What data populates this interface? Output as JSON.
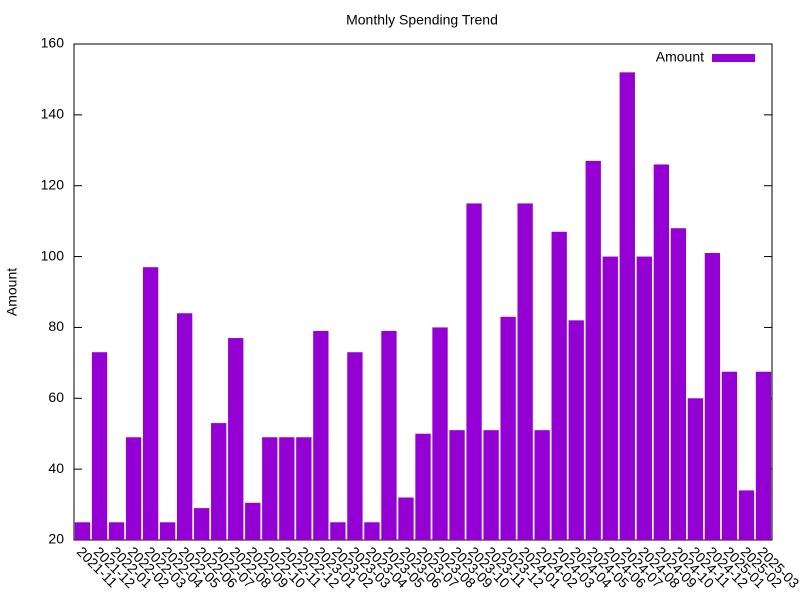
{
  "chart_data": {
    "type": "bar",
    "title": "Monthly Spending Trend",
    "y_label": "Amount",
    "categories": [
      "2021-11",
      "2021-12",
      "2022-01",
      "2022-02",
      "2022-03",
      "2022-04",
      "2022-05",
      "2022-06",
      "2022-07",
      "2022-08",
      "2022-09",
      "2022-10",
      "2022-11",
      "2022-12",
      "2023-01",
      "2023-02",
      "2023-03",
      "2023-04",
      "2023-05",
      "2023-06",
      "2023-07",
      "2023-08",
      "2023-09",
      "2023-10",
      "2023-11",
      "2023-12",
      "2024-01",
      "2024-02",
      "2024-03",
      "2024-04",
      "2024-05",
      "2024-06",
      "2024-07",
      "2024-08",
      "2024-09",
      "2024-10",
      "2024-11",
      "2024-12",
      "2025-01",
      "2025-02",
      "2025-03"
    ],
    "series": [
      {
        "name": "Amount",
        "color": "#9400d3",
        "values": [
          25,
          73,
          25,
          49,
          97,
          25,
          84,
          29,
          53,
          77,
          30.5,
          49,
          49,
          49,
          79,
          25,
          73,
          25,
          79,
          32,
          50,
          80,
          51,
          115,
          51,
          83,
          115,
          51,
          107,
          82,
          127,
          100,
          152,
          100,
          126,
          108,
          60,
          101,
          67.5,
          34,
          67.5
        ]
      }
    ],
    "ylim": [
      20,
      160
    ],
    "yticks": [
      20,
      40,
      60,
      80,
      100,
      120,
      140,
      160
    ],
    "legend": "top right"
  }
}
